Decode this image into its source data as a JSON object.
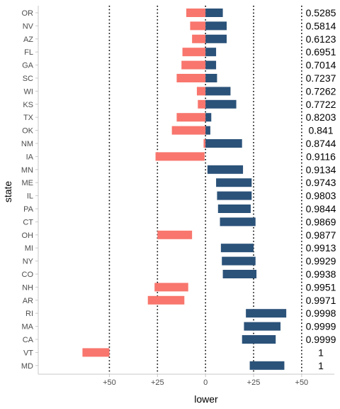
{
  "chart_data": {
    "type": "bar",
    "xlabel": "lower",
    "ylabel": "state",
    "xlim": [
      -87,
      67
    ],
    "x_ticks": [
      {
        "value": -50,
        "label": "+50"
      },
      {
        "value": -25,
        "label": "+25"
      },
      {
        "value": 0,
        "label": "0"
      },
      {
        "value": 25,
        "label": "+25"
      },
      {
        "value": 50,
        "label": "+50"
      }
    ],
    "reference_lines": [
      -50,
      -25,
      0,
      25,
      50
    ],
    "colors": {
      "negative": "#F8766D",
      "positive": "#2B5279"
    },
    "rows": [
      {
        "state": "OR",
        "lower": -10,
        "upper": 9,
        "value_label": "0.5285"
      },
      {
        "state": "NV",
        "lower": -8,
        "upper": 11,
        "value_label": "0.5814"
      },
      {
        "state": "AZ",
        "lower": -7,
        "upper": 11,
        "value_label": "0.6123"
      },
      {
        "state": "FL",
        "lower": -12,
        "upper": 5.5,
        "value_label": "0.6951"
      },
      {
        "state": "GA",
        "lower": -12.5,
        "upper": 5.5,
        "value_label": "0.7014"
      },
      {
        "state": "SC",
        "lower": -15,
        "upper": 6,
        "value_label": "0.7237"
      },
      {
        "state": "WI",
        "lower": -4.5,
        "upper": 13,
        "value_label": "0.7262"
      },
      {
        "state": "KS",
        "lower": -4,
        "upper": 16,
        "value_label": "0.7722"
      },
      {
        "state": "TX",
        "lower": -15,
        "upper": 3,
        "value_label": "0.8203"
      },
      {
        "state": "OK",
        "lower": -17.5,
        "upper": 2.5,
        "value_label": "0.841"
      },
      {
        "state": "NM",
        "lower": -1,
        "upper": 19,
        "value_label": "0.8744"
      },
      {
        "state": "IA",
        "lower": -26,
        "upper": -0.5,
        "value_label": "0.9116"
      },
      {
        "state": "MN",
        "lower": 1,
        "upper": 19.5,
        "value_label": "0.9134"
      },
      {
        "state": "ME",
        "lower": 5.5,
        "upper": 24,
        "value_label": "0.9743"
      },
      {
        "state": "IL",
        "lower": 6,
        "upper": 24,
        "value_label": "0.9803"
      },
      {
        "state": "PA",
        "lower": 6.5,
        "upper": 23.5,
        "value_label": "0.9844"
      },
      {
        "state": "CT",
        "lower": 7.5,
        "upper": 26,
        "value_label": "0.9869"
      },
      {
        "state": "OH",
        "lower": -25,
        "upper": -7,
        "value_label": "0.9877"
      },
      {
        "state": "MI",
        "lower": 8,
        "upper": 25,
        "value_label": "0.9913"
      },
      {
        "state": "NY",
        "lower": 8.5,
        "upper": 26,
        "value_label": "0.9929"
      },
      {
        "state": "CO",
        "lower": 9,
        "upper": 26.5,
        "value_label": "0.9938"
      },
      {
        "state": "NH",
        "lower": -26.5,
        "upper": -9,
        "value_label": "0.9951"
      },
      {
        "state": "AR",
        "lower": -30,
        "upper": -11,
        "value_label": "0.9971"
      },
      {
        "state": "RI",
        "lower": 21,
        "upper": 42,
        "value_label": "0.9998"
      },
      {
        "state": "MA",
        "lower": 20,
        "upper": 39,
        "value_label": "0.9999"
      },
      {
        "state": "CA",
        "lower": 19,
        "upper": 36.5,
        "value_label": "0.9999"
      },
      {
        "state": "VT",
        "lower": -64,
        "upper": -50,
        "value_label": "1"
      },
      {
        "state": "MD",
        "lower": 23,
        "upper": 41,
        "value_label": "1"
      }
    ]
  }
}
